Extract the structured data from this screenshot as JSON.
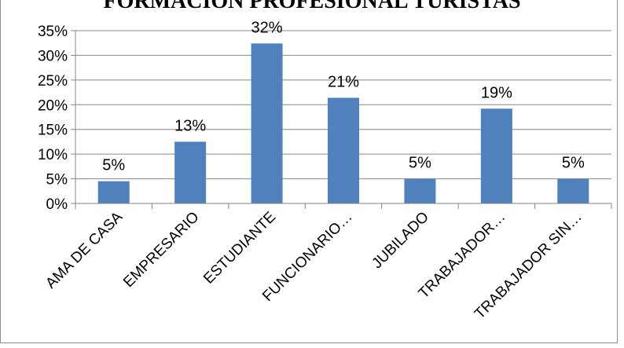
{
  "chart_data": {
    "type": "bar",
    "title": "FORMACION PROFESIONAL TURISTAS",
    "categories": [
      "AMA DE CASA",
      "EMPRESARIO",
      "ESTUDIANTE",
      "FUNCIONARIO…",
      "JUBILADO",
      "TRABAJADOR…",
      "TRABAJADOR SIN…"
    ],
    "values": [
      4.5,
      12.5,
      32.4,
      21.4,
      5.0,
      19.2,
      5.0
    ],
    "data_labels": [
      "5%",
      "13%",
      "32%",
      "21%",
      "5%",
      "19%",
      "5%"
    ],
    "ylim": [
      0,
      35
    ],
    "yticks": [
      0,
      5,
      10,
      15,
      20,
      25,
      30,
      35
    ],
    "ytick_labels": [
      "0%",
      "5%",
      "10%",
      "15%",
      "20%",
      "25%",
      "30%",
      "35%"
    ],
    "grid": true,
    "legend": "none",
    "bar_color": "#4f81bd",
    "grid_color": "#868686"
  }
}
